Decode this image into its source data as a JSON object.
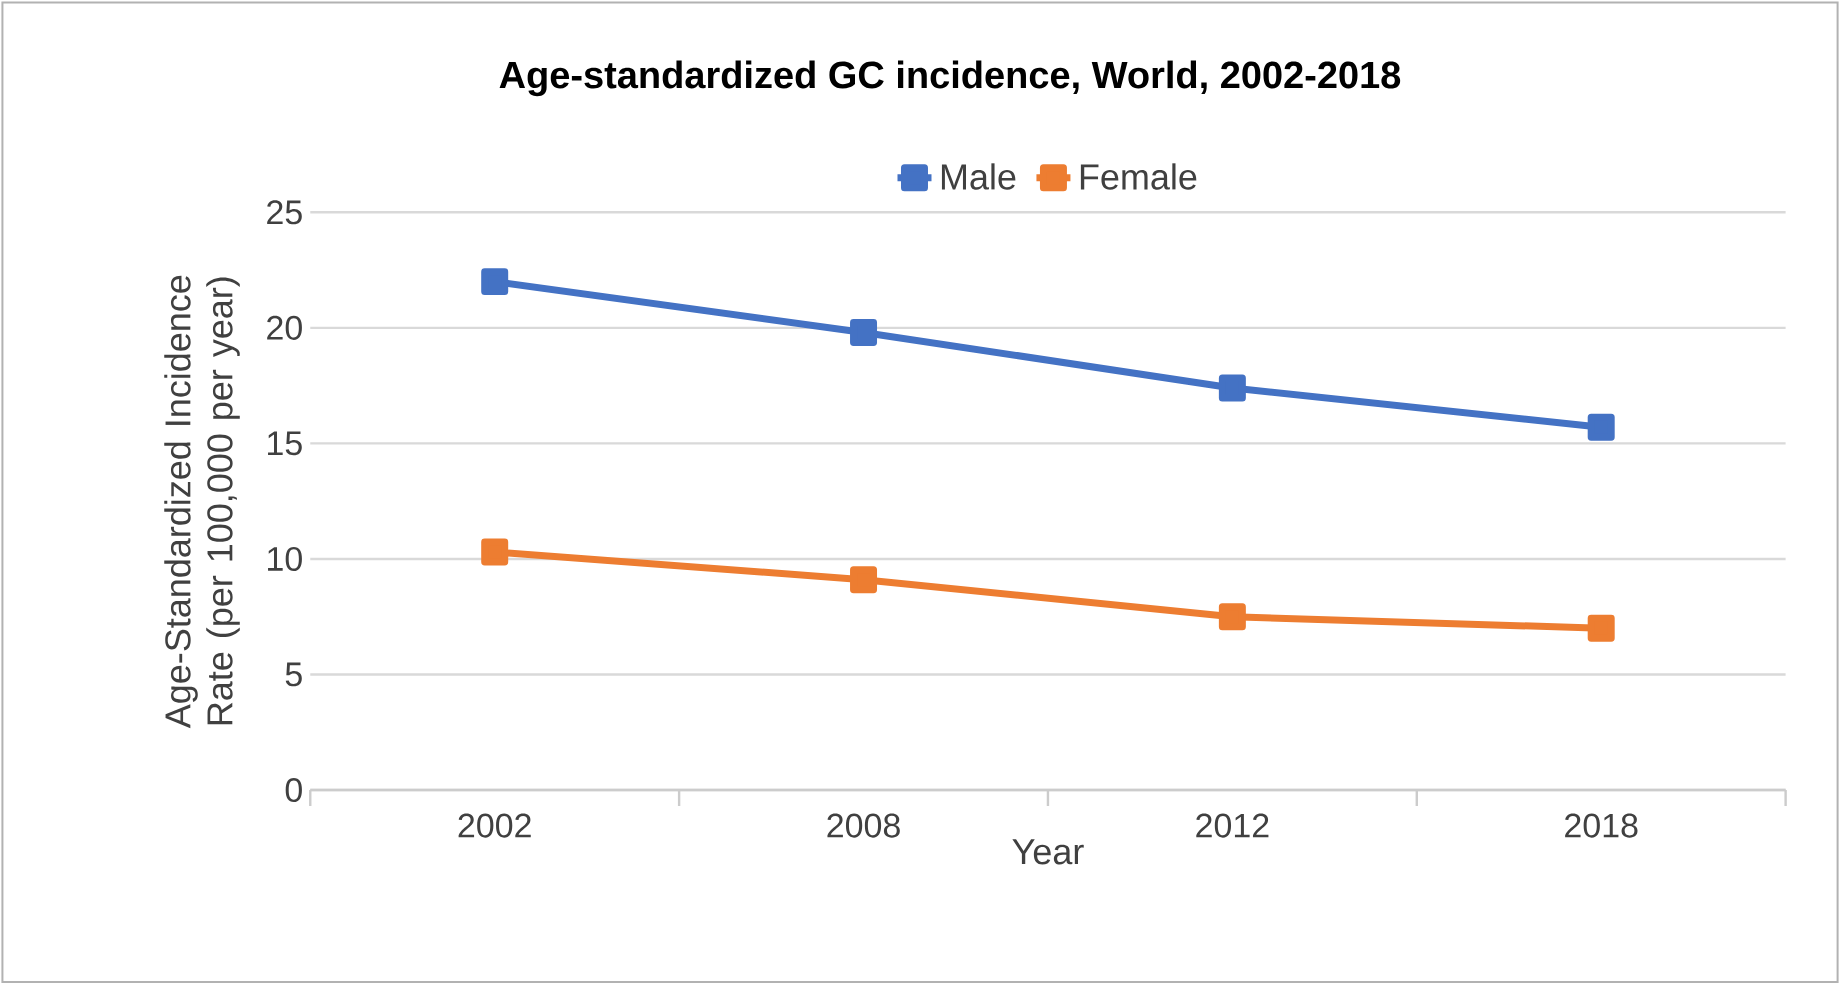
{
  "chart_data": {
    "type": "line",
    "title": "Age-standardized GC incidence, World, 2002-2018",
    "xlabel": "Year",
    "ylabel": "Age-Standardized Incidence Rate (per 100,000 per year)",
    "categories": [
      "2002",
      "2008",
      "2012",
      "2018"
    ],
    "series": [
      {
        "name": "Male",
        "color": "#4472c4",
        "values": [
          22.0,
          19.8,
          17.4,
          15.7
        ]
      },
      {
        "name": "Female",
        "color": "#ed7d31",
        "values": [
          10.3,
          9.1,
          7.5,
          7.0
        ]
      }
    ],
    "ylim": [
      0,
      25
    ],
    "yticks": [
      0,
      5,
      10,
      15,
      20,
      25
    ],
    "grid": "y",
    "legend": "top",
    "marker": "square",
    "line_style": "solid"
  }
}
